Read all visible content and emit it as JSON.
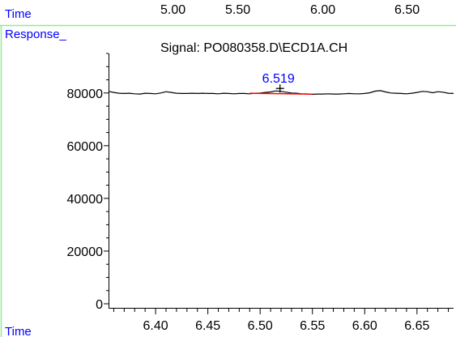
{
  "top_strip": {
    "label": "Time",
    "ticks": [
      "5.00",
      "5.50",
      "6.00",
      "6.50"
    ]
  },
  "colors": {
    "accent_text": "#0000ff",
    "separator": "#90ee90",
    "trace": "#000000",
    "baseline": "#ff0000"
  },
  "chart_data": {
    "type": "line",
    "title": "Signal: PO080358.D\\ECD1A.CH",
    "ylabel": "Response_",
    "xlabel": "Time",
    "xlim": [
      6.355,
      6.685
    ],
    "ylim": [
      0,
      95000
    ],
    "y_ticks": [
      "0",
      "20000",
      "40000",
      "60000",
      "80000"
    ],
    "x_ticks": [
      "6.40",
      "6.45",
      "6.50",
      "6.55",
      "6.60",
      "6.65"
    ],
    "grid": false,
    "series": [
      {
        "x": [
          6.355,
          6.36,
          6.365,
          6.37,
          6.375,
          6.38,
          6.385,
          6.39,
          6.395,
          6.4,
          6.405,
          6.41,
          6.415,
          6.42,
          6.425,
          6.43,
          6.435,
          6.44,
          6.445,
          6.45,
          6.455,
          6.46,
          6.465,
          6.47,
          6.475,
          6.48,
          6.485,
          6.49,
          6.495,
          6.5,
          6.505,
          6.51,
          6.515,
          6.52,
          6.525,
          6.53,
          6.535,
          6.54,
          6.545,
          6.55,
          6.555,
          6.56,
          6.565,
          6.57,
          6.575,
          6.58,
          6.585,
          6.59,
          6.595,
          6.6,
          6.605,
          6.61,
          6.615,
          6.62,
          6.625,
          6.63,
          6.635,
          6.64,
          6.645,
          6.65,
          6.655,
          6.66,
          6.665,
          6.67,
          6.675,
          6.68,
          6.685
        ],
        "y": [
          80600,
          80200,
          79900,
          79800,
          79900,
          79700,
          79600,
          79900,
          79800,
          79700,
          80000,
          80500,
          80200,
          79900,
          79800,
          79800,
          79900,
          79800,
          79900,
          79800,
          79800,
          79700,
          79900,
          79800,
          79700,
          79800,
          79800,
          79700,
          79900,
          80000,
          80200,
          80400,
          80800,
          80600,
          80300,
          80000,
          79900,
          79700,
          79600,
          79500,
          79600,
          79600,
          79700,
          79600,
          79600,
          79700,
          79800,
          79700,
          79700,
          79800,
          80100,
          80700,
          80900,
          80400,
          80000,
          79900,
          79800,
          79700,
          79900,
          80200,
          80600,
          80500,
          80100,
          80500,
          80300,
          79900,
          79800
        ]
      }
    ],
    "peak": {
      "label": "6.519",
      "x": 6.519,
      "y": 80800,
      "baseline_x": [
        6.49,
        6.55
      ]
    }
  }
}
